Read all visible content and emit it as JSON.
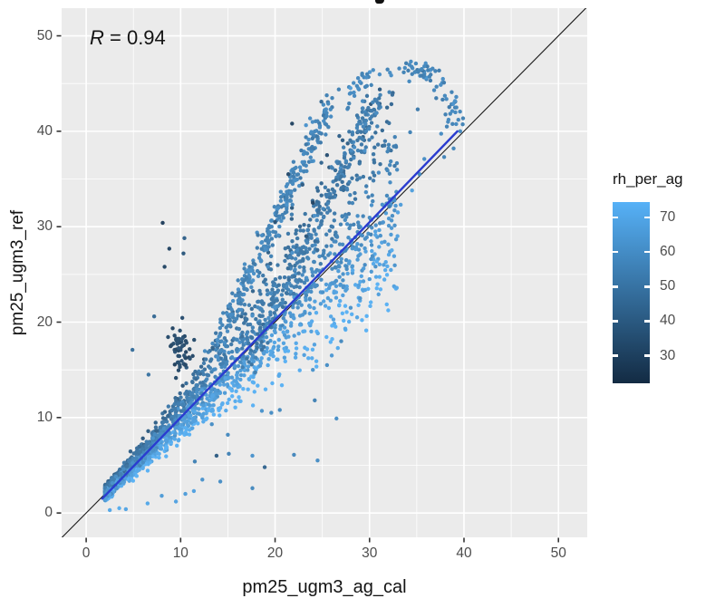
{
  "annotation": {
    "symbol": "R",
    "rest": " = 0.94"
  },
  "chart_data": {
    "type": "scatter",
    "title": "",
    "xlabel": "pm25_ugm3_ag_cal",
    "ylabel": "pm25_ugm3_ref",
    "xlim": [
      -2.6,
      53.05
    ],
    "ylim": [
      -2.55,
      52.9
    ],
    "x_ticks": [
      0,
      10,
      20,
      30,
      40,
      50
    ],
    "y_ticks": [
      0,
      10,
      20,
      30,
      40,
      50
    ],
    "minor_ticks": [
      5,
      15,
      25,
      35,
      45
    ],
    "grid": {
      "panel_bg": "#EBEBEB",
      "major_color": "#FFFFFF",
      "minor_color": "#FFFFFF",
      "major_width": 1.6,
      "minor_width": 0.8
    },
    "correlation": {
      "symbol": "R",
      "rest": " = 0.94",
      "value": 0.94
    },
    "identity_line": {
      "color": "#1a1a1a",
      "width": 1.1
    },
    "regression_line": {
      "x1": 1.7,
      "y1": 1.5,
      "x2": 39.3,
      "y2": 40.0,
      "color": "#2A3CD0",
      "width": 2.4
    },
    "point_style": {
      "radius": 2.2,
      "opacity": 0.95
    },
    "color_scale": {
      "title": "rh_per_ag",
      "low_color": "#132B43",
      "high_color": "#56B1F7",
      "domain": [
        22,
        74.5
      ],
      "legend_ticks": [
        70,
        60,
        50,
        40,
        30
      ]
    },
    "seed": 20240613,
    "clusters": [
      {
        "type": "fan",
        "n": 2150,
        "x_min": 2,
        "x_span": 31,
        "x_power": 1.9,
        "up": 0.45,
        "down": 0.38,
        "rh_mid": 60,
        "rh_swing": -19,
        "rh_noise": 6
      },
      {
        "type": "blob",
        "n": 55,
        "cx": 10.2,
        "cy": 17.2,
        "sx": 0.75,
        "sy": 1.6,
        "rh": 33,
        "rh_noise": 4
      },
      {
        "type": "streak",
        "n": 300,
        "x1": 13.5,
        "y1": 17,
        "x2": 26,
        "y2": 43,
        "sx": 0.85,
        "sy": 1.4,
        "rh": 56,
        "rh_noise": 5
      },
      {
        "type": "streak",
        "n": 300,
        "x1": 17,
        "y1": 16,
        "x2": 31,
        "y2": 43.5,
        "sx": 1.05,
        "sy": 1.7,
        "rh": 52,
        "rh_noise": 6
      },
      {
        "type": "arc",
        "n": 85,
        "cx": 33.2,
        "cy": 41.0,
        "rx": 5.8,
        "ry": 5.6,
        "deg1": 170,
        "deg2": -14,
        "jitter": 0.55,
        "rh": 57,
        "rh_noise": 5
      },
      {
        "type": "blob",
        "n": 18,
        "cx": 35.6,
        "cy": 46.4,
        "sx": 1.1,
        "sy": 0.55,
        "rh": 55,
        "rh_noise": 4
      }
    ],
    "outlier_points": [
      [
        8.1,
        30.4,
        28
      ],
      [
        8.8,
        27.7,
        30
      ],
      [
        10.3,
        27.2,
        38
      ],
      [
        8.3,
        25.8,
        31
      ],
      [
        10.4,
        28.8,
        42
      ],
      [
        7.2,
        20.6,
        45
      ],
      [
        4.9,
        17.1,
        47
      ],
      [
        6.6,
        14.5,
        49
      ],
      [
        21.8,
        40.8,
        30
      ],
      [
        21.4,
        35.5,
        33
      ],
      [
        22.9,
        34.4,
        40
      ],
      [
        24.9,
        36.7,
        44
      ],
      [
        24.9,
        43.1,
        45
      ],
      [
        20.0,
        30.5,
        35
      ],
      [
        24.0,
        32.5,
        30
      ],
      [
        25.5,
        37.5,
        35
      ],
      [
        23.3,
        29.0,
        38
      ],
      [
        26.8,
        39.5,
        42
      ],
      [
        24.2,
        11.8,
        55
      ],
      [
        26.5,
        9.9,
        60
      ],
      [
        18.6,
        10.7,
        62
      ],
      [
        19.6,
        10.5,
        60
      ],
      [
        20.5,
        10.8,
        58
      ],
      [
        22.0,
        6.1,
        57
      ],
      [
        24.5,
        5.5,
        60
      ],
      [
        17.6,
        6.0,
        62
      ],
      [
        18.9,
        4.8,
        44
      ],
      [
        17.6,
        2.6,
        58
      ],
      [
        14.2,
        3.3,
        60
      ],
      [
        12.3,
        3.5,
        62
      ],
      [
        11.4,
        2.3,
        68
      ],
      [
        13.3,
        9.3,
        60
      ],
      [
        15.0,
        8.2,
        58
      ],
      [
        15.1,
        6.2,
        55
      ],
      [
        13.8,
        6.0,
        40
      ],
      [
        11.5,
        5.4,
        55
      ],
      [
        8.0,
        1.8,
        65
      ],
      [
        9.5,
        1.2,
        68
      ],
      [
        10.5,
        2.0,
        66
      ],
      [
        6.5,
        1.0,
        70
      ],
      [
        2.5,
        0.3,
        70
      ],
      [
        3.5,
        0.5,
        72
      ],
      [
        4.2,
        0.4,
        69
      ],
      [
        28.0,
        21.5,
        62
      ],
      [
        30.0,
        24.5,
        64
      ],
      [
        31.5,
        26.0,
        66
      ],
      [
        29.0,
        22.5,
        61
      ],
      [
        27.0,
        18.0,
        58
      ],
      [
        25.5,
        15.5,
        60
      ],
      [
        24.0,
        15.0,
        62
      ],
      [
        26.0,
        16.5,
        64
      ],
      [
        33.0,
        31.5,
        68
      ],
      [
        33.3,
        32.3,
        66
      ],
      [
        34.5,
        33.8,
        67
      ],
      [
        35.8,
        37.1,
        60
      ],
      [
        35.3,
        35.5,
        58
      ],
      [
        34.3,
        39.9,
        55
      ],
      [
        35.1,
        42.3,
        52
      ],
      [
        30.9,
        38.6,
        50
      ],
      [
        32.1,
        44.1,
        55
      ],
      [
        38.7,
        44.1,
        55
      ],
      [
        39.2,
        42.5,
        56
      ],
      [
        39.4,
        41.2,
        57
      ],
      [
        39.6,
        40.0,
        58
      ],
      [
        38.9,
        38.2,
        57
      ],
      [
        37.9,
        37.3,
        56
      ]
    ]
  }
}
